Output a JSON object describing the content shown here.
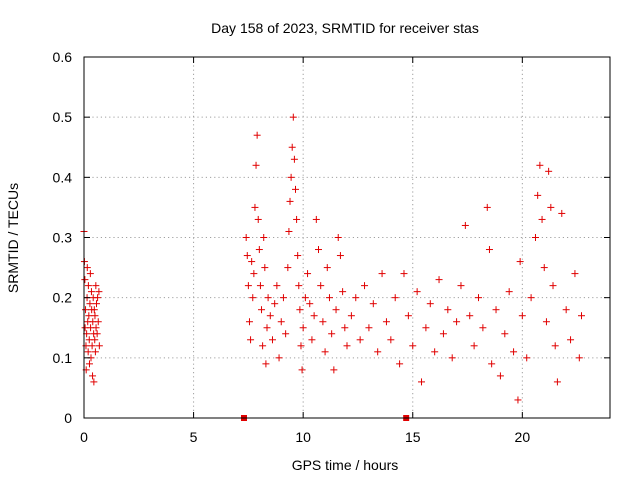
{
  "chart_data": {
    "type": "scatter",
    "title": "Day 158 of 2023, SRMTID for receiver stas",
    "xlabel": "GPS time / hours",
    "ylabel": "SRMTID / TECUs",
    "xlim": [
      0,
      24
    ],
    "ylim": [
      0,
      0.6
    ],
    "xticks": [
      0,
      5,
      10,
      15,
      20
    ],
    "yticks": [
      0,
      0.1,
      0.2,
      0.3,
      0.4,
      0.5,
      0.6
    ],
    "xtick_labels": [
      "0",
      "5",
      "10",
      "15",
      "20"
    ],
    "ytick_labels": [
      "0",
      "0.1",
      "0.2",
      "0.3",
      "0.4",
      "0.5",
      "0.6"
    ],
    "grid": true,
    "marker": "+",
    "color": "#e00000",
    "zero_markers": [
      7.3,
      14.7
    ],
    "series": [
      {
        "name": "SRMTID",
        "points": [
          [
            0.0,
            0.31
          ],
          [
            0.02,
            0.26
          ],
          [
            0.04,
            0.23
          ],
          [
            0.05,
            0.15
          ],
          [
            0.07,
            0.18
          ],
          [
            0.09,
            0.12
          ],
          [
            0.1,
            0.08
          ],
          [
            0.12,
            0.14
          ],
          [
            0.14,
            0.2
          ],
          [
            0.15,
            0.25
          ],
          [
            0.17,
            0.16
          ],
          [
            0.19,
            0.11
          ],
          [
            0.2,
            0.22
          ],
          [
            0.22,
            0.17
          ],
          [
            0.24,
            0.13
          ],
          [
            0.25,
            0.09
          ],
          [
            0.27,
            0.19
          ],
          [
            0.29,
            0.24
          ],
          [
            0.3,
            0.15
          ],
          [
            0.32,
            0.1
          ],
          [
            0.34,
            0.21
          ],
          [
            0.35,
            0.18
          ],
          [
            0.37,
            0.12
          ],
          [
            0.39,
            0.07
          ],
          [
            0.4,
            0.16
          ],
          [
            0.42,
            0.2
          ],
          [
            0.44,
            0.14
          ],
          [
            0.45,
            0.06
          ],
          [
            0.47,
            0.18
          ],
          [
            0.49,
            0.13
          ],
          [
            0.5,
            0.17
          ],
          [
            0.52,
            0.11
          ],
          [
            0.54,
            0.22
          ],
          [
            0.55,
            0.15
          ],
          [
            0.57,
            0.19
          ],
          [
            0.6,
            0.14
          ],
          [
            0.62,
            0.2
          ],
          [
            0.65,
            0.16
          ],
          [
            0.68,
            0.21
          ],
          [
            0.7,
            0.12
          ],
          [
            7.4,
            0.3
          ],
          [
            7.45,
            0.27
          ],
          [
            7.5,
            0.22
          ],
          [
            7.55,
            0.16
          ],
          [
            7.6,
            0.13
          ],
          [
            7.65,
            0.26
          ],
          [
            7.7,
            0.2
          ],
          [
            7.75,
            0.24
          ],
          [
            7.8,
            0.35
          ],
          [
            7.85,
            0.42
          ],
          [
            7.9,
            0.47
          ],
          [
            7.95,
            0.33
          ],
          [
            8.0,
            0.28
          ],
          [
            8.05,
            0.22
          ],
          [
            8.1,
            0.18
          ],
          [
            8.15,
            0.12
          ],
          [
            8.2,
            0.3
          ],
          [
            8.25,
            0.25
          ],
          [
            8.3,
            0.09
          ],
          [
            8.35,
            0.15
          ],
          [
            8.4,
            0.2
          ],
          [
            8.5,
            0.17
          ],
          [
            8.6,
            0.13
          ],
          [
            8.7,
            0.19
          ],
          [
            8.8,
            0.22
          ],
          [
            8.9,
            0.1
          ],
          [
            9.0,
            0.16
          ],
          [
            9.1,
            0.2
          ],
          [
            9.2,
            0.14
          ],
          [
            9.3,
            0.25
          ],
          [
            9.35,
            0.31
          ],
          [
            9.4,
            0.36
          ],
          [
            9.45,
            0.4
          ],
          [
            9.5,
            0.45
          ],
          [
            9.55,
            0.5
          ],
          [
            9.6,
            0.43
          ],
          [
            9.65,
            0.38
          ],
          [
            9.7,
            0.33
          ],
          [
            9.75,
            0.27
          ],
          [
            9.8,
            0.22
          ],
          [
            9.85,
            0.18
          ],
          [
            9.9,
            0.12
          ],
          [
            9.95,
            0.08
          ],
          [
            10.0,
            0.15
          ],
          [
            10.1,
            0.2
          ],
          [
            10.2,
            0.24
          ],
          [
            10.3,
            0.19
          ],
          [
            10.4,
            0.13
          ],
          [
            10.5,
            0.17
          ],
          [
            10.6,
            0.33
          ],
          [
            10.7,
            0.28
          ],
          [
            10.8,
            0.22
          ],
          [
            10.9,
            0.16
          ],
          [
            11.0,
            0.11
          ],
          [
            11.1,
            0.25
          ],
          [
            11.2,
            0.2
          ],
          [
            11.3,
            0.14
          ],
          [
            11.4,
            0.08
          ],
          [
            11.5,
            0.18
          ],
          [
            11.6,
            0.3
          ],
          [
            11.7,
            0.27
          ],
          [
            11.8,
            0.21
          ],
          [
            11.9,
            0.15
          ],
          [
            12.0,
            0.12
          ],
          [
            12.2,
            0.17
          ],
          [
            12.4,
            0.2
          ],
          [
            12.6,
            0.13
          ],
          [
            12.8,
            0.22
          ],
          [
            13.0,
            0.15
          ],
          [
            13.2,
            0.19
          ],
          [
            13.4,
            0.11
          ],
          [
            13.6,
            0.24
          ],
          [
            13.8,
            0.16
          ],
          [
            14.0,
            0.13
          ],
          [
            14.2,
            0.2
          ],
          [
            14.4,
            0.09
          ],
          [
            14.6,
            0.24
          ],
          [
            14.8,
            0.17
          ],
          [
            15.0,
            0.12
          ],
          [
            15.2,
            0.21
          ],
          [
            15.4,
            0.06
          ],
          [
            15.6,
            0.15
          ],
          [
            15.8,
            0.19
          ],
          [
            16.0,
            0.11
          ],
          [
            16.2,
            0.23
          ],
          [
            16.4,
            0.14
          ],
          [
            16.6,
            0.18
          ],
          [
            16.8,
            0.1
          ],
          [
            17.0,
            0.16
          ],
          [
            17.2,
            0.22
          ],
          [
            17.4,
            0.32
          ],
          [
            17.6,
            0.17
          ],
          [
            17.8,
            0.12
          ],
          [
            18.0,
            0.2
          ],
          [
            18.2,
            0.15
          ],
          [
            18.4,
            0.35
          ],
          [
            18.5,
            0.28
          ],
          [
            18.6,
            0.09
          ],
          [
            18.8,
            0.18
          ],
          [
            19.0,
            0.07
          ],
          [
            19.2,
            0.14
          ],
          [
            19.4,
            0.21
          ],
          [
            19.6,
            0.11
          ],
          [
            19.8,
            0.03
          ],
          [
            19.9,
            0.26
          ],
          [
            20.0,
            0.17
          ],
          [
            20.2,
            0.1
          ],
          [
            20.4,
            0.2
          ],
          [
            20.6,
            0.3
          ],
          [
            20.7,
            0.37
          ],
          [
            20.8,
            0.42
          ],
          [
            20.9,
            0.33
          ],
          [
            21.0,
            0.25
          ],
          [
            21.1,
            0.16
          ],
          [
            21.2,
            0.41
          ],
          [
            21.3,
            0.35
          ],
          [
            21.4,
            0.22
          ],
          [
            21.5,
            0.12
          ],
          [
            21.6,
            0.06
          ],
          [
            21.8,
            0.34
          ],
          [
            22.0,
            0.18
          ],
          [
            22.2,
            0.13
          ],
          [
            22.4,
            0.24
          ],
          [
            22.6,
            0.1
          ],
          [
            22.7,
            0.17
          ]
        ]
      }
    ]
  }
}
